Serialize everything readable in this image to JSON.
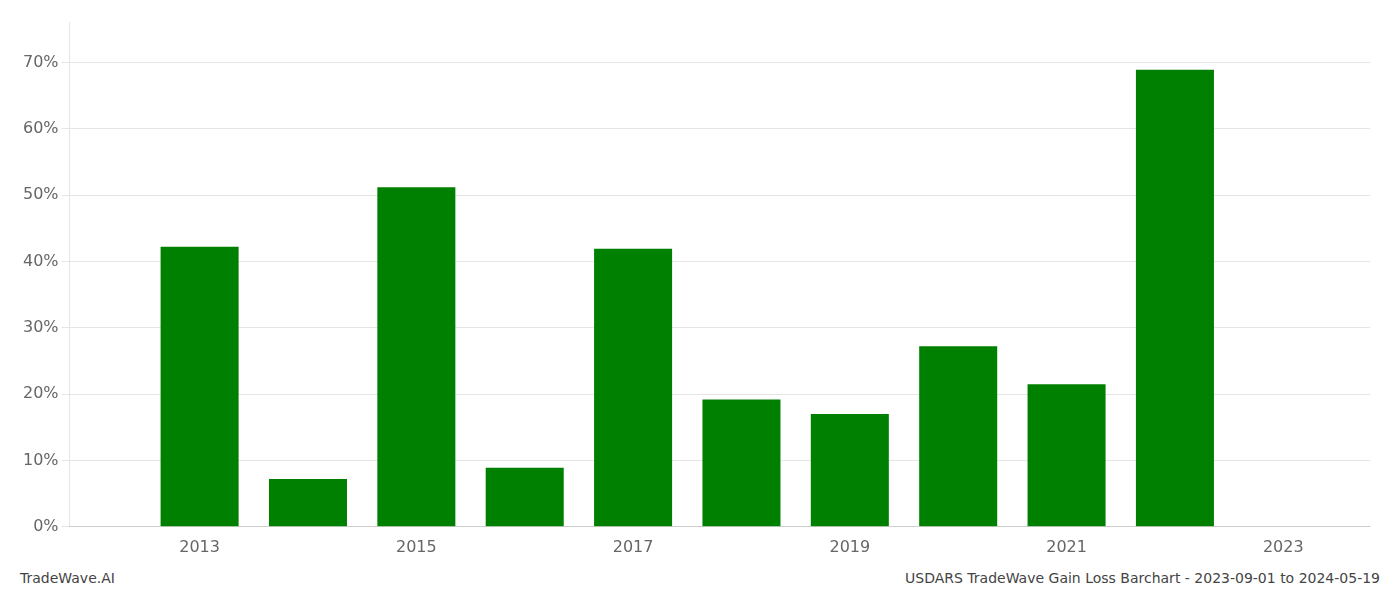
{
  "chart_data": {
    "type": "bar",
    "x": [
      2013,
      2014,
      2015,
      2016,
      2017,
      2018,
      2019,
      2020,
      2021,
      2022
    ],
    "values": [
      0.422,
      0.072,
      0.512,
      0.089,
      0.419,
      0.192,
      0.17,
      0.272,
      0.215,
      0.689
    ],
    "color": "#008000",
    "xlim": [
      2011.8,
      2023.8
    ],
    "xticks": [
      2013,
      2015,
      2017,
      2019,
      2021,
      2023
    ],
    "ylim": [
      0,
      0.76
    ],
    "yticks": [
      {
        "value": 0.0,
        "label": "0%"
      },
      {
        "value": 0.1,
        "label": "10%"
      },
      {
        "value": 0.2,
        "label": "20%"
      },
      {
        "value": 0.3,
        "label": "30%"
      },
      {
        "value": 0.4,
        "label": "40%"
      },
      {
        "value": 0.5,
        "label": "50%"
      },
      {
        "value": 0.6,
        "label": "60%"
      },
      {
        "value": 0.7,
        "label": "70%"
      }
    ],
    "grid": "y",
    "annotations": [
      "TradeWave.AI",
      "USDARS TradeWave Gain Loss Barchart - 2023-09-01 to 2024-05-19"
    ]
  }
}
